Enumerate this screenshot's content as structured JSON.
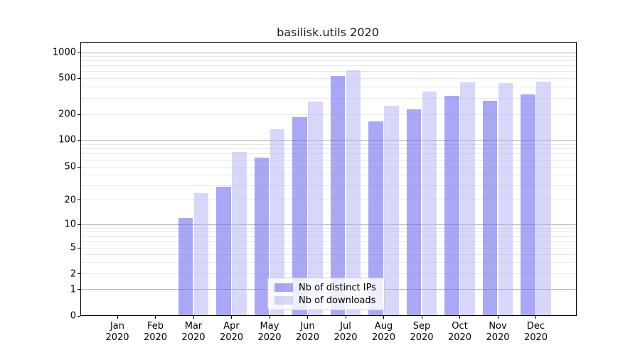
{
  "figure": {
    "title": "basilisk.utils 2020"
  },
  "legend": {
    "items": [
      {
        "label": "Nb of distinct IPs"
      },
      {
        "label": "Nb of downloads"
      }
    ]
  },
  "colors": {
    "bar_distinct_ips": "#8888ee",
    "bar_distinct_ips_fill": "rgba(110,110,240,0.6)",
    "bar_downloads": "#ccccff",
    "bar_downloads_fill": "rgba(175,175,245,0.5)",
    "grid_major": "#b2b2b2",
    "grid_minor": "#e8e8e8",
    "spine": "#000000",
    "text": "#1a1a1a"
  },
  "chart_data": {
    "type": "bar",
    "title": "basilisk.utils 2020",
    "categories": [
      "Jan 2020",
      "Feb 2020",
      "Mar 2020",
      "Apr 2020",
      "May 2020",
      "Jun 2020",
      "Jul 2020",
      "Aug 2020",
      "Sep 2020",
      "Oct 2020",
      "Nov 2020",
      "Dec 2020"
    ],
    "x_tick_line1": [
      "Jan",
      "Feb",
      "Mar",
      "Apr",
      "May",
      "Jun",
      "Jul",
      "Aug",
      "Sep",
      "Oct",
      "Nov",
      "Dec"
    ],
    "x_tick_line2": [
      "2020",
      "2020",
      "2020",
      "2020",
      "2020",
      "2020",
      "2020",
      "2020",
      "2020",
      "2020",
      "2020",
      "2020"
    ],
    "series": [
      {
        "name": "Nb of distinct IPs",
        "values": [
          0,
          0,
          12,
          29,
          63,
          185,
          530,
          165,
          225,
          320,
          280,
          330
        ]
      },
      {
        "name": "Nb of downloads",
        "values": [
          0,
          0,
          24,
          73,
          135,
          275,
          620,
          250,
          355,
          450,
          440,
          460
        ]
      }
    ],
    "y_axis": {
      "scale": "symlog",
      "tick_values": [
        0,
        1,
        2,
        5,
        10,
        20,
        50,
        100,
        200,
        500,
        1000
      ],
      "tick_labels": [
        "0",
        "1",
        "2",
        "5",
        "10",
        "20",
        "50",
        "100",
        "200",
        "500",
        "1000"
      ],
      "major_grid_values": [
        1,
        10,
        100,
        1000
      ],
      "minor_grid_values": [
        2,
        3,
        4,
        5,
        6,
        7,
        8,
        9,
        20,
        30,
        40,
        50,
        60,
        70,
        80,
        90,
        200,
        300,
        400,
        500,
        600,
        700,
        800,
        900
      ],
      "ylim": [
        0,
        1300
      ]
    },
    "grid": true,
    "legend_position": "lower center"
  }
}
